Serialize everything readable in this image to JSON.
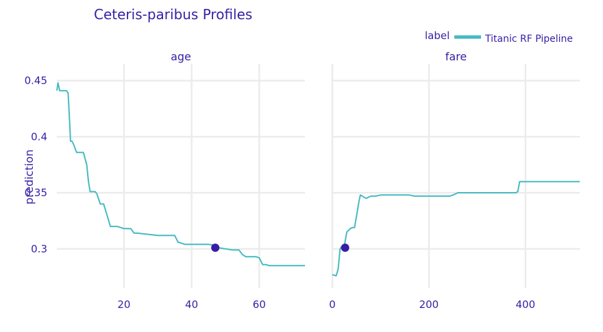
{
  "chart_data": {
    "type": "line",
    "title": "Ceteris-paribus Profiles",
    "ylabel": "prediction",
    "legend": {
      "title": "label",
      "placement": "top-right",
      "entries": [
        "Titanic RF Pipeline"
      ]
    },
    "series_color": "#46bac2",
    "point_color": "#371ea3",
    "grid": true,
    "ylim": [
      0.265,
      0.465
    ],
    "yticks": [
      0.3,
      0.35,
      0.4,
      0.45
    ],
    "ytick_labels": [
      "0.3",
      "0.35",
      "0.4",
      "0.45"
    ],
    "panels": [
      {
        "facet": "age",
        "xlim": [
          0.17,
          73.5
        ],
        "xticks": [
          20,
          40,
          60
        ],
        "xtick_labels": [
          "20",
          "40",
          "60"
        ],
        "series": [
          {
            "name": "Titanic RF Pipeline",
            "x": [
              0.17,
              0.5,
              1,
              1.5,
              2,
              2.5,
              3,
              3.5,
              4,
              4.2,
              4.6,
              5,
              6,
              7,
              8,
              9,
              9.5,
              10,
              11,
              11.5,
              12,
              13,
              14,
              15,
              16,
              17,
              18,
              19,
              20,
              21,
              22,
              23,
              24,
              30,
              35,
              36,
              37,
              38,
              40,
              45,
              47,
              48,
              50,
              52,
              54,
              55,
              56,
              58,
              59,
              60,
              61,
              62,
              63,
              65,
              70,
              73.5
            ],
            "y": [
              0.441,
              0.448,
              0.441,
              0.441,
              0.441,
              0.441,
              0.441,
              0.439,
              0.41,
              0.396,
              0.396,
              0.394,
              0.386,
              0.386,
              0.386,
              0.375,
              0.36,
              0.351,
              0.351,
              0.351,
              0.349,
              0.34,
              0.34,
              0.33,
              0.32,
              0.32,
              0.32,
              0.319,
              0.318,
              0.318,
              0.318,
              0.314,
              0.314,
              0.312,
              0.312,
              0.306,
              0.305,
              0.304,
              0.304,
              0.304,
              0.303,
              0.301,
              0.3,
              0.299,
              0.299,
              0.295,
              0.293,
              0.293,
              0.293,
              0.292,
              0.286,
              0.286,
              0.285,
              0.285,
              0.285,
              0.285
            ]
          }
        ],
        "observation": {
          "x": 47,
          "y": 0.301
        }
      },
      {
        "facet": "fare",
        "xlim": [
          0,
          512.33
        ],
        "xticks": [
          0,
          200,
          400
        ],
        "xtick_labels": [
          "0",
          "200",
          "400"
        ],
        "series": [
          {
            "name": "Titanic RF Pipeline",
            "x": [
              0,
              8,
              12,
              16,
              19,
              23,
              25,
              30,
              37,
              42,
              46,
              50,
              55,
              58,
              62,
              70,
              80,
              90,
              100,
              160,
              170,
              243,
              250,
              260,
              300,
              380,
              384,
              388,
              395,
              512.33
            ],
            "y": [
              0.277,
              0.276,
              0.282,
              0.3,
              0.302,
              0.302,
              0.303,
              0.315,
              0.318,
              0.319,
              0.319,
              0.329,
              0.342,
              0.348,
              0.347,
              0.345,
              0.347,
              0.347,
              0.348,
              0.348,
              0.347,
              0.347,
              0.348,
              0.35,
              0.35,
              0.35,
              0.351,
              0.36,
              0.36,
              0.36
            ]
          }
        ],
        "observation": {
          "x": 26.5,
          "y": 0.301
        }
      }
    ]
  }
}
